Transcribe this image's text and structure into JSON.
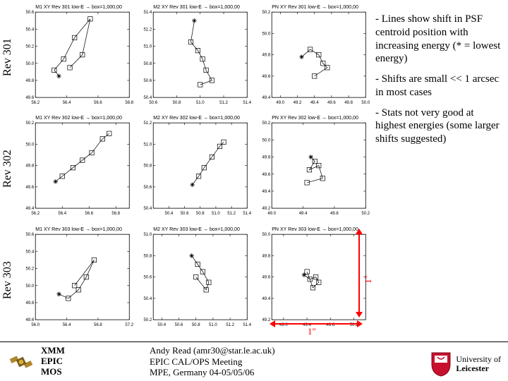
{
  "columns": [
    "MOS1",
    "MOS2",
    "pn"
  ],
  "rows": [
    "Rev 301",
    "Rev 302",
    "Rev 303"
  ],
  "bullets": [
    "- Lines show shift in PSF centroid position with increasing energy (* = lowest energy)",
    "- Shifts are small << 1 arcsec in most cases",
    "- Stats not very good at highest energies (some larger shifts suggested)"
  ],
  "arcsec_label": "1\"",
  "footer": {
    "left": [
      "XMM",
      "EPIC",
      "MOS"
    ],
    "mid": [
      "Andy Read (amr30@star.le.ac.uk)",
      "EPIC CAL/OPS Meeting",
      "MPE, Germany 04-05/05/06"
    ],
    "uni": [
      "University of",
      "Leicester"
    ]
  },
  "panel_style": {
    "axis_color": "#000000",
    "tick_color": "#000000",
    "marker_stroke": "#000000",
    "marker_fill": "none",
    "line_color": "#000000",
    "line_width": 0.7,
    "marker_size": 3.2,
    "bg": "#ffffff",
    "title_fontsize": 7,
    "tick_fontsize": 6
  },
  "arrow_color": "#ff0000",
  "panels": [
    {
      "r": 0,
      "c": 0,
      "title": "M1 XY Rev 301 low-E → box=1,000,00",
      "xlim": [
        56.2,
        56.8
      ],
      "ylim": [
        49.6,
        50.6
      ],
      "yticks": [
        49.6,
        49.8,
        50.0,
        50.2,
        50.4,
        50.6
      ],
      "xticks": [
        56.2,
        56.4,
        56.6,
        56.8
      ],
      "pts": [
        [
          56.35,
          49.85
        ],
        [
          56.32,
          49.92
        ],
        [
          56.38,
          50.05
        ],
        [
          56.45,
          50.3
        ],
        [
          56.55,
          50.52
        ],
        [
          56.5,
          50.1
        ],
        [
          56.42,
          49.95
        ]
      ],
      "star": 0
    },
    {
      "r": 0,
      "c": 1,
      "title": "M2 XY Rev 301 low-E → box=1,000,00",
      "xlim": [
        50.6,
        51.4
      ],
      "ylim": [
        50.4,
        51.4
      ],
      "yticks": [
        50.4,
        50.6,
        50.8,
        51.0,
        51.2,
        51.4
      ],
      "xticks": [
        50.6,
        50.8,
        51.0,
        51.2,
        51.4
      ],
      "pts": [
        [
          50.95,
          51.3
        ],
        [
          50.92,
          51.05
        ],
        [
          50.98,
          50.95
        ],
        [
          51.02,
          50.85
        ],
        [
          51.05,
          50.72
        ],
        [
          51.1,
          50.6
        ],
        [
          51.0,
          50.55
        ]
      ],
      "star": 0
    },
    {
      "r": 0,
      "c": 2,
      "title": "PN XY Rev 301 low-E → box=1,000,00",
      "xlim": [
        48.9,
        50.0
      ],
      "ylim": [
        49.4,
        50.2
      ],
      "yticks": [
        49.4,
        49.6,
        49.8,
        50.0,
        50.2
      ],
      "xticks": [
        49.0,
        49.2,
        49.4,
        49.6,
        49.8,
        50.0
      ],
      "pts": [
        [
          49.25,
          49.78
        ],
        [
          49.35,
          49.85
        ],
        [
          49.45,
          49.8
        ],
        [
          49.5,
          49.72
        ],
        [
          49.55,
          49.68
        ],
        [
          49.4,
          49.6
        ]
      ],
      "star": 0
    },
    {
      "r": 1,
      "c": 0,
      "title": "M1 XY Rev 302 low-E → box=1,000,00",
      "xlim": [
        56.2,
        56.9
      ],
      "ylim": [
        49.4,
        50.2
      ],
      "yticks": [
        49.4,
        49.6,
        49.8,
        50.0,
        50.2
      ],
      "xticks": [
        56.2,
        56.4,
        56.6,
        56.8
      ],
      "pts": [
        [
          56.35,
          49.65
        ],
        [
          56.4,
          49.7
        ],
        [
          56.48,
          49.78
        ],
        [
          56.55,
          49.85
        ],
        [
          56.62,
          49.92
        ],
        [
          56.7,
          50.05
        ],
        [
          56.75,
          50.1
        ]
      ],
      "star": 0
    },
    {
      "r": 1,
      "c": 1,
      "title": "M2 XY Rev 302 low-E → box=1,000,00",
      "xlim": [
        50.2,
        51.4
      ],
      "ylim": [
        50.4,
        51.2
      ],
      "yticks": [
        50.4,
        50.6,
        50.8,
        51.0,
        51.2
      ],
      "xticks": [
        50.4,
        50.6,
        50.8,
        51.0,
        51.2,
        51.4
      ],
      "pts": [
        [
          50.7,
          50.62
        ],
        [
          50.78,
          50.7
        ],
        [
          50.85,
          50.78
        ],
        [
          50.95,
          50.88
        ],
        [
          51.05,
          50.98
        ],
        [
          51.1,
          51.02
        ]
      ],
      "star": 0
    },
    {
      "r": 1,
      "c": 2,
      "title": "PN XY Rev 302 low-E → box=1,000,00",
      "xlim": [
        49.0,
        50.2
      ],
      "ylim": [
        49.2,
        50.2
      ],
      "yticks": [
        49.2,
        49.4,
        49.6,
        49.8,
        50.0,
        50.2
      ],
      "xticks": [
        49.0,
        49.4,
        49.8,
        50.2
      ],
      "pts": [
        [
          49.5,
          49.8
        ],
        [
          49.55,
          49.75
        ],
        [
          49.48,
          49.65
        ],
        [
          49.6,
          49.7
        ],
        [
          49.65,
          49.55
        ],
        [
          49.45,
          49.5
        ]
      ],
      "star": 0
    },
    {
      "r": 2,
      "c": 0,
      "title": "M1 XY Rev 303 low-E → box=1,000,00",
      "xlim": [
        56.0,
        57.2
      ],
      "ylim": [
        49.6,
        50.6
      ],
      "yticks": [
        49.6,
        49.8,
        50.0,
        50.2,
        50.4,
        50.6
      ],
      "xticks": [
        56.0,
        56.4,
        56.8,
        57.2
      ],
      "pts": [
        [
          56.3,
          49.9
        ],
        [
          56.42,
          49.85
        ],
        [
          56.55,
          49.95
        ],
        [
          56.65,
          50.1
        ],
        [
          56.75,
          50.3
        ],
        [
          56.5,
          50.0
        ]
      ],
      "star": 0
    },
    {
      "r": 2,
      "c": 1,
      "title": "M2 XY Rev 303 low-E → box=1,000,00",
      "xlim": [
        50.3,
        51.4
      ],
      "ylim": [
        50.2,
        51.0
      ],
      "yticks": [
        50.2,
        50.4,
        50.6,
        50.8,
        51.0
      ],
      "xticks": [
        50.4,
        50.6,
        50.8,
        51.0,
        51.2,
        51.4
      ],
      "pts": [
        [
          50.75,
          50.8
        ],
        [
          50.82,
          50.72
        ],
        [
          50.88,
          50.65
        ],
        [
          50.95,
          50.55
        ],
        [
          50.92,
          50.48
        ],
        [
          50.8,
          50.6
        ]
      ],
      "star": 0
    },
    {
      "r": 2,
      "c": 2,
      "title": "PN XY Rev 303 low-E → box=1,000,00",
      "xlim": [
        48.8,
        50.4
      ],
      "ylim": [
        49.2,
        50.0
      ],
      "yticks": [
        49.2,
        49.4,
        49.6,
        49.8,
        50.0
      ],
      "xticks": [
        49.0,
        49.4,
        49.8,
        50.2
      ],
      "pts": [
        [
          49.35,
          49.62
        ],
        [
          49.45,
          49.58
        ],
        [
          49.55,
          49.6
        ],
        [
          49.6,
          49.55
        ],
        [
          49.5,
          49.5
        ],
        [
          49.4,
          49.65
        ]
      ],
      "star": 0
    }
  ]
}
